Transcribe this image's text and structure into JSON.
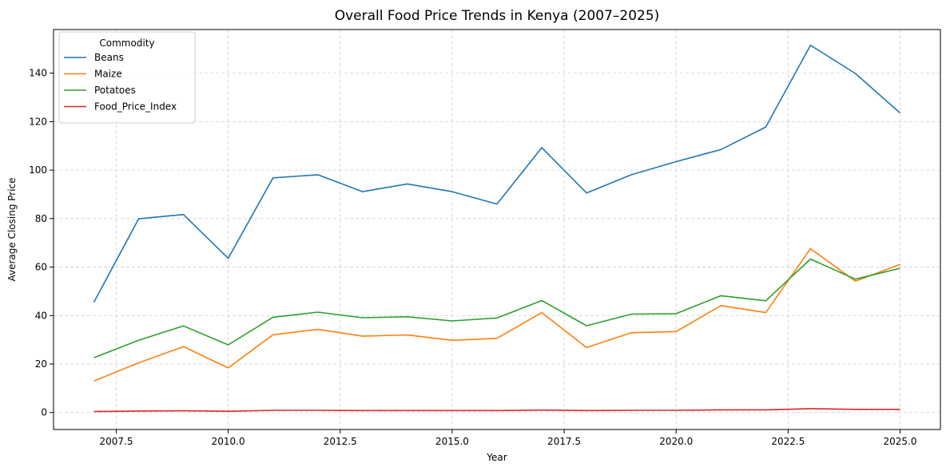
{
  "chart_data": {
    "type": "line",
    "title": "Overall Food Price Trends in Kenya (2007–2025)",
    "xlabel": "Year",
    "ylabel": "Average Closing Price",
    "x": [
      2007,
      2008,
      2009,
      2010,
      2011,
      2012,
      2013,
      2014,
      2015,
      2016,
      2017,
      2018,
      2019,
      2020,
      2021,
      2022,
      2023,
      2024,
      2025
    ],
    "xlim": [
      2006.1,
      2025.9
    ],
    "ylim": [
      -7,
      158
    ],
    "x_ticks": [
      2007.5,
      2010.0,
      2012.5,
      2015.0,
      2017.5,
      2020.0,
      2022.5,
      2025.0
    ],
    "x_tick_labels": [
      "2007.5",
      "2010.0",
      "2012.5",
      "2015.0",
      "2017.5",
      "2020.0",
      "2022.5",
      "2025.0"
    ],
    "y_ticks": [
      0,
      20,
      40,
      60,
      80,
      100,
      120,
      140
    ],
    "y_tick_labels": [
      "0",
      "20",
      "40",
      "60",
      "80",
      "100",
      "120",
      "140"
    ],
    "grid": true,
    "legend": {
      "title": "Commodity",
      "placement": "top-left"
    },
    "series": [
      {
        "name": "Beans",
        "color": "#1f77b4",
        "values": [
          45.5,
          79.9,
          81.7,
          63.6,
          96.8,
          98.1,
          91.1,
          94.3,
          91.1,
          86.0,
          109.3,
          90.6,
          98.1,
          103.5,
          108.5,
          117.8,
          151.5,
          139.9,
          123.6
        ]
      },
      {
        "name": "Maize",
        "color": "#ff7f0e",
        "values": [
          13.0,
          20.5,
          27.2,
          18.4,
          32.1,
          34.3,
          31.5,
          32.0,
          29.8,
          30.6,
          41.2,
          26.8,
          32.9,
          33.4,
          44.1,
          41.2,
          67.6,
          54.2,
          61.1
        ]
      },
      {
        "name": "Potatoes",
        "color": "#2ca02c",
        "values": [
          22.6,
          29.8,
          35.7,
          27.9,
          39.3,
          41.4,
          39.1,
          39.5,
          37.8,
          39.0,
          46.2,
          35.8,
          40.6,
          40.8,
          48.2,
          46.1,
          63.3,
          55.0,
          59.5
        ]
      },
      {
        "name": "Food_Price_Index",
        "color": "#d62728",
        "values": [
          0.4,
          0.6,
          0.7,
          0.5,
          0.9,
          0.9,
          0.8,
          0.8,
          0.8,
          0.8,
          1.0,
          0.8,
          0.9,
          0.9,
          1.1,
          1.1,
          1.6,
          1.3,
          1.3
        ]
      }
    ]
  }
}
